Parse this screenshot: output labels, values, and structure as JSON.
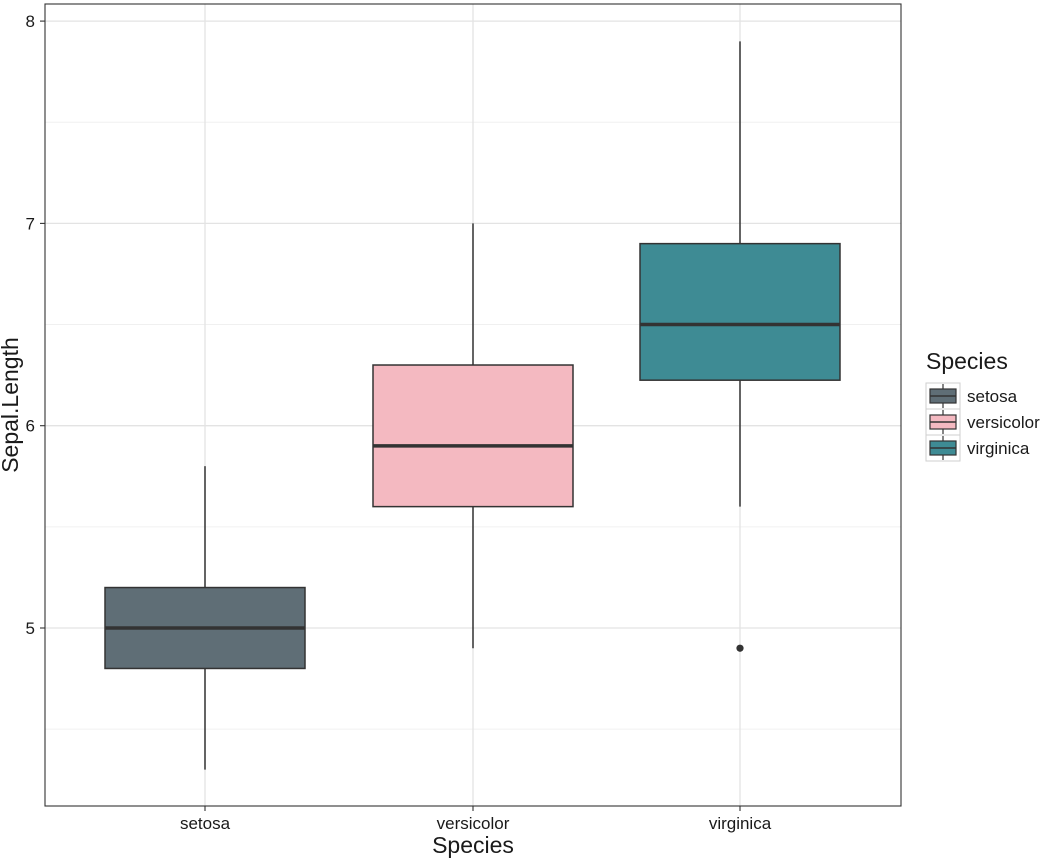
{
  "chart_data": {
    "type": "boxplot",
    "title": "",
    "xlabel": "Species",
    "ylabel": "Sepal.Length",
    "ylim": [
      4.2,
      8.1
    ],
    "y_ticks": [
      5,
      6,
      7,
      8
    ],
    "y_tick_labels": [
      "5",
      "6",
      "7",
      "8"
    ],
    "y_minor_ticks": [
      4.5,
      5.5,
      6.5,
      7.5
    ],
    "grid": true,
    "categories": [
      "setosa",
      "versicolor",
      "virginica"
    ],
    "boxes": [
      {
        "category": "setosa",
        "min": 4.3,
        "q1": 4.8,
        "median": 5.0,
        "q3": 5.2,
        "max": 5.8,
        "outliers": [],
        "color": "#5f6e76"
      },
      {
        "category": "versicolor",
        "min": 4.9,
        "q1": 5.6,
        "median": 5.9,
        "q3": 6.3,
        "max": 7.0,
        "outliers": [],
        "color": "#f4b9c1"
      },
      {
        "category": "virginica",
        "min": 5.6,
        "q1": 6.225,
        "median": 6.5,
        "q3": 6.9,
        "max": 7.9,
        "outliers": [
          4.9
        ],
        "color": "#3e8b94"
      }
    ],
    "legend": {
      "title": "Species",
      "position": "right",
      "entries": [
        {
          "label": "setosa",
          "color": "#5f6e76"
        },
        {
          "label": "versicolor",
          "color": "#f4b9c1"
        },
        {
          "label": "virginica",
          "color": "#3e8b94"
        }
      ]
    }
  }
}
